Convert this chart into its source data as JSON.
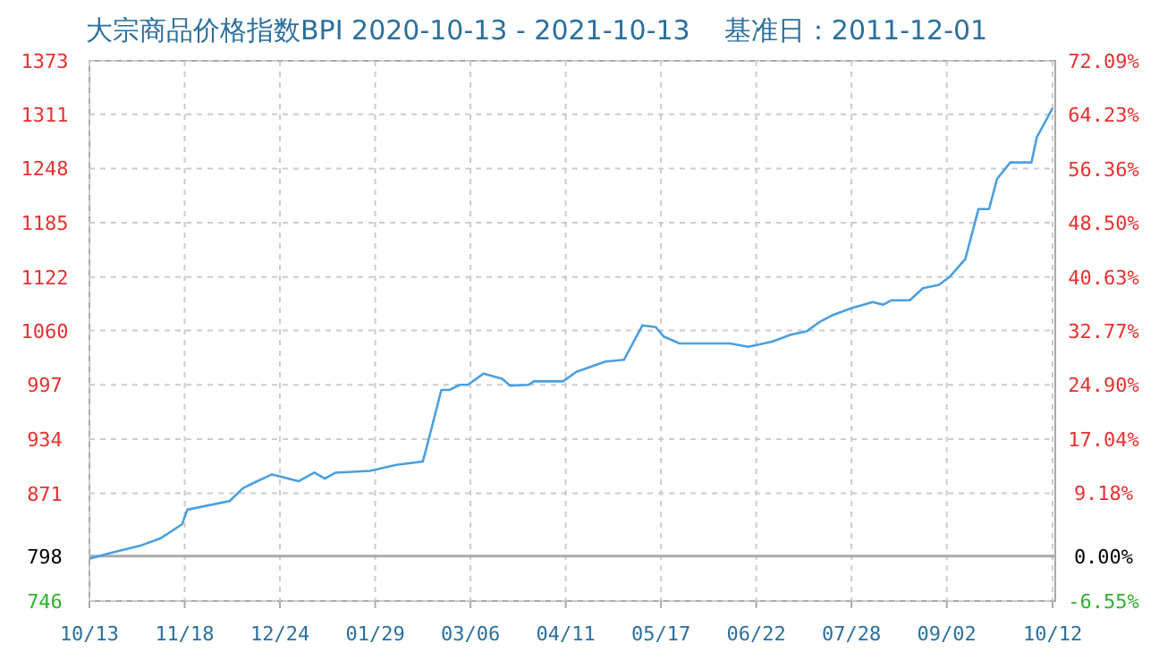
{
  "chart_data": {
    "type": "line",
    "title": "大宗商品价格指数BPI 2020-10-13 - 2021-10-13    基准日：2011-12-01",
    "x": [
      "2020-10-13",
      "2020-10-20",
      "2020-11-01",
      "2020-11-09",
      "2020-11-17",
      "2020-11-19",
      "2020-12-05",
      "2020-12-10",
      "2020-12-14",
      "2020-12-21",
      "2020-12-31",
      "2021-01-06",
      "2021-01-10",
      "2021-01-14",
      "2021-01-27",
      "2021-02-06",
      "2021-02-16",
      "2021-02-18",
      "2021-02-23",
      "2021-02-26",
      "2021-03-02",
      "2021-03-05",
      "2021-03-11",
      "2021-03-18",
      "2021-03-21",
      "2021-03-28",
      "2021-03-30",
      "2021-04-10",
      "2021-04-15",
      "2021-04-26",
      "2021-05-03",
      "2021-05-10",
      "2021-05-15",
      "2021-05-18",
      "2021-05-24",
      "2021-06-01",
      "2021-06-12",
      "2021-06-19",
      "2021-06-28",
      "2021-07-05",
      "2021-07-11",
      "2021-07-16",
      "2021-07-21",
      "2021-07-28",
      "2021-08-05",
      "2021-08-09",
      "2021-08-12",
      "2021-08-19",
      "2021-08-24",
      "2021-08-30",
      "2021-09-03",
      "2021-09-09",
      "2021-09-14",
      "2021-09-18",
      "2021-09-21",
      "2021-09-26",
      "2021-10-04",
      "2021-10-06",
      "2021-10-12"
    ],
    "series": [
      {
        "color": "#4a9fe0",
        "values": [
          795,
          801,
          810,
          819,
          835,
          852,
          862,
          877,
          883,
          893,
          885,
          895,
          888,
          895,
          897,
          904,
          908,
          931,
          991,
          991,
          997,
          997,
          1010,
          1004,
          996,
          997,
          1001,
          1001,
          1012,
          1024,
          1026,
          1066,
          1064,
          1053,
          1045,
          1045,
          1045,
          1041,
          1047,
          1055,
          1059,
          1070,
          1078,
          1086,
          1093,
          1090,
          1095,
          1095,
          1109,
          1113,
          1122,
          1143,
          1201,
          1201,
          1236,
          1255,
          1255,
          1284,
          1318
        ]
      }
    ],
    "xlim": [
      "2020-10-13",
      "2021-10-13"
    ],
    "xticks": [
      {
        "value": "2020-10-13",
        "label": "10/13"
      },
      {
        "value": "2020-11-18",
        "label": "11/18"
      },
      {
        "value": "2020-12-24",
        "label": "12/24"
      },
      {
        "value": "2021-01-29",
        "label": "01/29"
      },
      {
        "value": "2021-03-06",
        "label": "03/06"
      },
      {
        "value": "2021-04-11",
        "label": "04/11"
      },
      {
        "value": "2021-05-17",
        "label": "05/17"
      },
      {
        "value": "2021-06-22",
        "label": "06/22"
      },
      {
        "value": "2021-07-28",
        "label": "07/28"
      },
      {
        "value": "2021-09-02",
        "label": "09/02"
      },
      {
        "value": "2021-10-12",
        "label": "10/12"
      }
    ],
    "ylim": [
      746,
      1373
    ],
    "yticks": [
      746,
      798,
      871,
      934,
      997,
      1060,
      1122,
      1185,
      1248,
      1311,
      1373
    ],
    "y2lim": [
      -6.55,
      72.09
    ],
    "y2ticks": [
      {
        "value": -6.55,
        "label": "-6.55%"
      },
      {
        "value": 0,
        "label": "0.00%"
      },
      {
        "value": 9.18,
        "label": "9.18%"
      },
      {
        "value": 17.04,
        "label": "17.04%"
      },
      {
        "value": 24.9,
        "label": "24.90%"
      },
      {
        "value": 32.77,
        "label": "32.77%"
      },
      {
        "value": 40.63,
        "label": "40.63%"
      },
      {
        "value": 48.5,
        "label": "48.50%"
      },
      {
        "value": 56.36,
        "label": "56.36%"
      },
      {
        "value": 64.23,
        "label": "64.23%"
      },
      {
        "value": 72.09,
        "label": "72.09%"
      }
    ],
    "ref_lines": [
      {
        "axis": "y2",
        "value": 0,
        "color": "#aaaaaa"
      }
    ],
    "grid": true,
    "marker": "none",
    "line_style": "solid"
  }
}
